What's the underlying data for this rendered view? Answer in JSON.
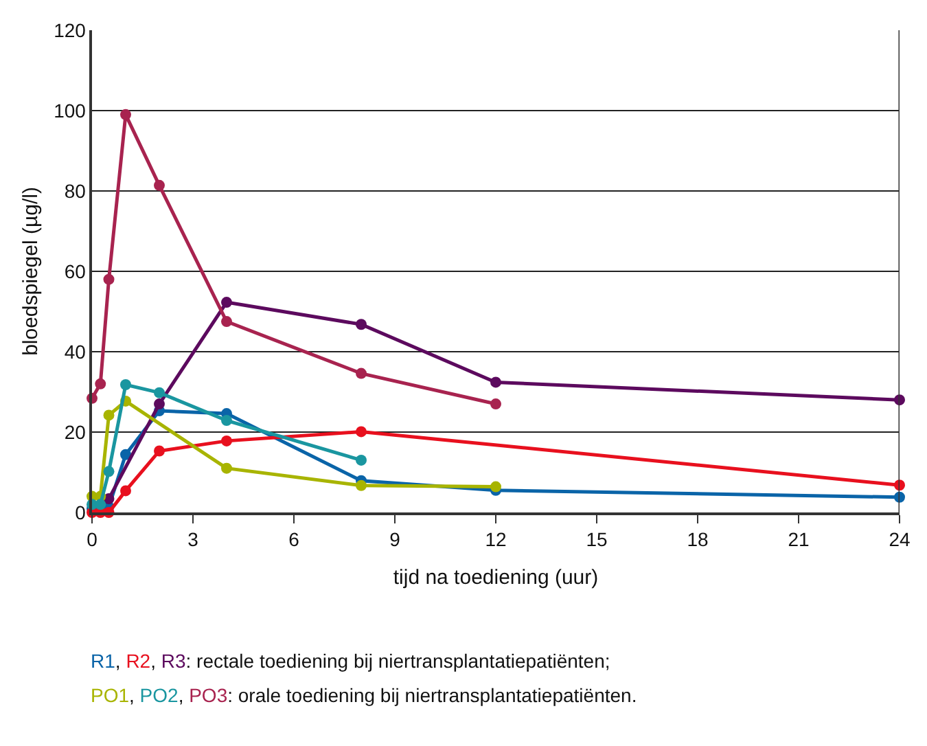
{
  "chart_data": {
    "type": "line",
    "xlabel": "tijd na toediening (uur)",
    "ylabel": "bloedspiegel (µg/l)",
    "xlim": [
      0,
      24
    ],
    "xticks": [
      0,
      3,
      6,
      9,
      12,
      15,
      18,
      21,
      24
    ],
    "ylim": [
      0,
      120
    ],
    "yticks": [
      0,
      20,
      40,
      60,
      80,
      100,
      120
    ],
    "grid": "y",
    "marker": "circle",
    "line_style": "solid",
    "legend": "bottom",
    "series": [
      {
        "name": "R1",
        "color": "#0a64a8",
        "x": [
          0,
          0.25,
          0.5,
          1,
          2,
          4,
          8,
          12,
          24
        ],
        "values": [
          1,
          1,
          1.4,
          14.4,
          25.3,
          24.6,
          7.9,
          5.5,
          3.8
        ]
      },
      {
        "name": "R2",
        "color": "#e8101e",
        "x": [
          0,
          0.25,
          0.5,
          1,
          2,
          4,
          8,
          24
        ],
        "values": [
          0,
          0,
          0,
          5.4,
          15.3,
          17.8,
          20.1,
          6.8
        ]
      },
      {
        "name": "R3",
        "color": "#5c0a5e",
        "x": [
          0.5,
          2,
          4,
          8,
          12,
          24
        ],
        "values": [
          3.4,
          27,
          52.3,
          46.8,
          32.4,
          28
        ]
      },
      {
        "name": "PO1",
        "color": "#a8b400",
        "x": [
          0,
          0.25,
          0.5,
          1,
          4,
          8,
          12
        ],
        "values": [
          4,
          4,
          24.2,
          27.7,
          11,
          6.7,
          6.4
        ]
      },
      {
        "name": "PO2",
        "color": "#1a96a0",
        "x": [
          0,
          0.25,
          0.5,
          1,
          2,
          4,
          8
        ],
        "values": [
          2,
          2,
          10.2,
          31.8,
          29.8,
          22.9,
          13
        ]
      },
      {
        "name": "PO3",
        "color": "#a8234f",
        "x": [
          0,
          0.25,
          0.5,
          1,
          2,
          4,
          8,
          12
        ],
        "values": [
          28.4,
          32,
          58,
          99,
          81.4,
          47.5,
          34.6,
          27
        ]
      }
    ],
    "annotations": [
      ", ",
      ": rectale toediening bij niertransplantatiepatiënten;",
      ": orale toediening bij niertransplantatiepatiënten."
    ]
  }
}
